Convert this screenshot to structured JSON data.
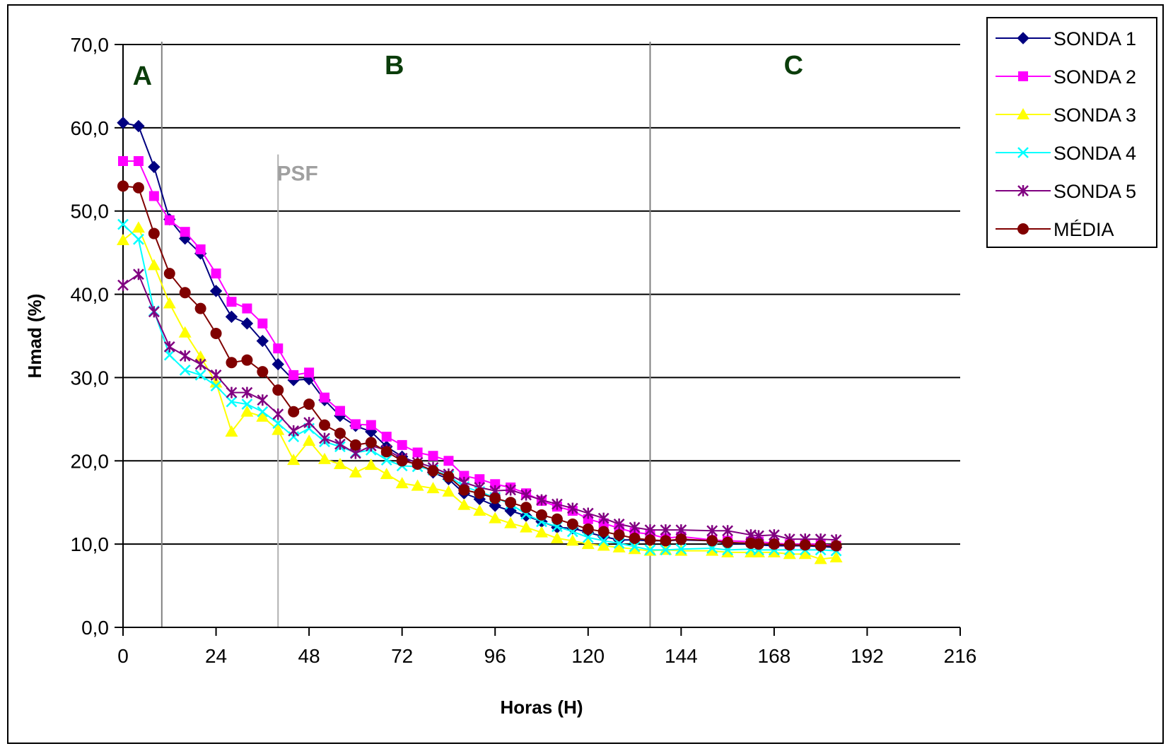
{
  "chart_data": {
    "type": "line",
    "xlabel": "Horas (H)",
    "ylabel": "Hmad (%)",
    "xlim": [
      0,
      216
    ],
    "ylim": [
      0,
      70
    ],
    "xticks": [
      0,
      24,
      48,
      72,
      96,
      120,
      144,
      168,
      192,
      216
    ],
    "yticks": [
      0,
      10,
      20,
      30,
      40,
      50,
      60,
      70
    ],
    "xtick_labels": [
      "0",
      "24",
      "48",
      "72",
      "96",
      "120",
      "144",
      "168",
      "192",
      "216"
    ],
    "ytick_labels": [
      "0,0",
      "10,0",
      "20,0",
      "30,0",
      "40,0",
      "50,0",
      "60,0",
      "70,0"
    ],
    "grid": "horizontal",
    "legend_position": "top-right",
    "regions": [
      {
        "label": "A",
        "x": 5,
        "color": "#0b3d0b"
      },
      {
        "label": "B",
        "x": 70,
        "color": "#0b3d0b"
      },
      {
        "label": "C",
        "x": 173,
        "color": "#0b3d0b"
      }
    ],
    "vertical_lines": [
      {
        "x": 10,
        "color": "#808080"
      },
      {
        "x": 40,
        "color": "#b0b0b0"
      },
      {
        "x": 136,
        "color": "#808080"
      }
    ],
    "annotations": [
      {
        "text": "PSF",
        "x": 45,
        "y": 54.5,
        "color": "#a0a0a0"
      }
    ],
    "x": [
      0,
      4,
      8,
      12,
      16,
      20,
      24,
      28,
      32,
      36,
      40,
      44,
      48,
      52,
      56,
      60,
      64,
      68,
      72,
      76,
      80,
      84,
      88,
      92,
      96,
      100,
      104,
      108,
      112,
      116,
      120,
      124,
      128,
      132,
      136,
      140,
      144,
      152,
      156,
      162,
      164,
      168,
      172,
      176,
      180,
      184
    ],
    "series": [
      {
        "name": "SONDA 1",
        "color": "#000080",
        "marker": "diamond",
        "values": [
          60.6,
          60.2,
          55.3,
          49.0,
          46.7,
          44.9,
          40.4,
          37.3,
          36.5,
          34.4,
          31.6,
          29.7,
          29.8,
          27.3,
          25.4,
          24.2,
          23.5,
          21.7,
          20.5,
          19.7,
          18.6,
          17.8,
          16.1,
          15.4,
          14.6,
          14.0,
          13.4,
          12.7,
          12.0,
          11.9,
          11.4,
          10.9,
          10.5,
          10.5,
          10.4,
          10.4,
          10.5,
          10.4,
          10.1,
          10.0,
          9.9,
          9.8,
          9.8,
          9.8,
          9.7,
          9.6
        ]
      },
      {
        "name": "SONDA 2",
        "color": "#ff00ff",
        "marker": "square",
        "values": [
          56.0,
          56.0,
          51.8,
          48.9,
          47.5,
          45.4,
          42.5,
          39.1,
          38.3,
          36.5,
          33.5,
          30.3,
          30.6,
          27.6,
          26.0,
          24.4,
          24.3,
          22.9,
          21.9,
          21.0,
          20.6,
          20.0,
          18.2,
          17.8,
          17.2,
          16.8,
          16.1,
          15.2,
          14.5,
          14.0,
          13.0,
          12.5,
          11.9,
          11.4,
          11.2,
          10.7,
          10.9,
          10.5,
          10.4,
          10.3,
          10.3,
          10.1,
          10.0,
          10.0,
          10.0,
          9.8
        ]
      },
      {
        "name": "SONDA 3",
        "color": "#ffff00",
        "marker": "triangle",
        "values": [
          46.5,
          48.0,
          43.5,
          38.9,
          35.4,
          32.5,
          29.4,
          23.5,
          25.9,
          25.3,
          23.7,
          20.1,
          22.4,
          20.2,
          19.6,
          18.6,
          19.5,
          18.4,
          17.3,
          17.0,
          16.7,
          16.3,
          14.7,
          14.0,
          13.1,
          12.5,
          12.0,
          11.4,
          10.7,
          10.4,
          10.0,
          9.8,
          9.6,
          9.4,
          9.2,
          9.3,
          9.2,
          9.2,
          9.0,
          9.0,
          9.0,
          9.0,
          8.8,
          8.8,
          8.2,
          8.4
        ]
      },
      {
        "name": "SONDA 4",
        "color": "#00ffff",
        "marker": "x",
        "values": [
          48.4,
          46.6,
          38.0,
          32.7,
          30.9,
          30.3,
          29.0,
          27.1,
          26.8,
          25.9,
          24.5,
          22.9,
          23.9,
          22.3,
          21.7,
          21.0,
          21.3,
          20.1,
          19.4,
          19.3,
          18.9,
          18.2,
          16.9,
          16.3,
          15.6,
          14.8,
          13.6,
          12.7,
          12.1,
          11.5,
          10.8,
          10.4,
          10.1,
          9.7,
          9.3,
          9.3,
          9.4,
          9.5,
          9.3,
          9.4,
          9.3,
          9.3,
          9.3,
          9.3,
          9.3,
          9.2
        ]
      },
      {
        "name": "SONDA 5",
        "color": "#800080",
        "marker": "star",
        "values": [
          41.1,
          42.4,
          37.9,
          33.7,
          32.6,
          31.6,
          30.3,
          28.2,
          28.2,
          27.3,
          25.6,
          23.6,
          24.6,
          22.7,
          22.0,
          20.9,
          21.8,
          21.3,
          20.3,
          19.8,
          19.2,
          18.4,
          17.4,
          16.8,
          16.4,
          16.5,
          15.9,
          15.3,
          14.8,
          14.3,
          13.7,
          13.1,
          12.4,
          12.0,
          11.7,
          11.7,
          11.7,
          11.6,
          11.6,
          11.1,
          11.0,
          11.1,
          10.6,
          10.6,
          10.6,
          10.5
        ]
      },
      {
        "name": "MÉDIA",
        "color": "#800000",
        "marker": "circle",
        "values": [
          53.0,
          52.8,
          47.3,
          42.5,
          40.2,
          38.3,
          35.3,
          31.8,
          32.1,
          30.7,
          28.5,
          25.9,
          26.8,
          24.3,
          23.3,
          21.9,
          22.2,
          21.1,
          20.0,
          19.6,
          18.8,
          18.1,
          16.5,
          16.1,
          15.5,
          15.0,
          14.4,
          13.5,
          13.0,
          12.4,
          11.8,
          11.5,
          11.1,
          10.7,
          10.5,
          10.4,
          10.6,
          10.4,
          10.2,
          10.1,
          10.0,
          10.0,
          9.9,
          9.9,
          9.8,
          9.8
        ]
      }
    ]
  }
}
